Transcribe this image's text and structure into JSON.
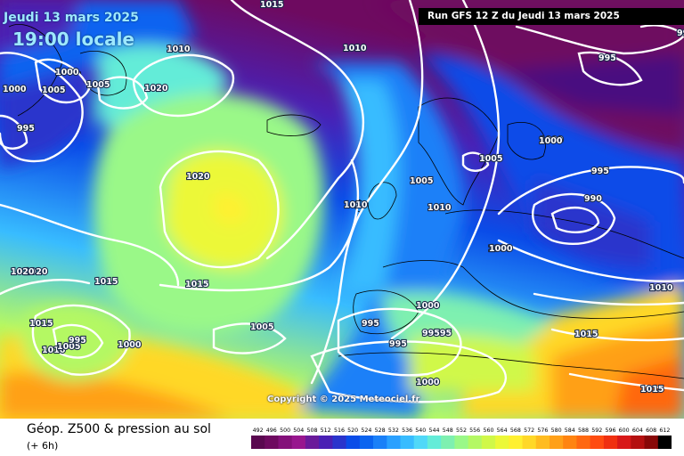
{
  "header": {
    "date": "Jeudi 13 mars 2025",
    "time": "19:00 locale",
    "run": "Run GFS 12 Z du Jeudi 13 mars 2025"
  },
  "copyright": "Copyright © 2025 Meteociel.fr",
  "footer": {
    "title": "Géop. Z500 & pression au sol",
    "subtitle": "(+ 6h)"
  },
  "isobar_labels": [
    "1015",
    "1010",
    "1000",
    "1005",
    "1020",
    "995",
    "1010",
    "1005",
    "1000",
    "1020",
    "1020",
    "1015",
    "1015",
    "1015",
    "1010",
    "1005",
    "995",
    "1000",
    "1005",
    "995",
    "995",
    "99595",
    "1000",
    "1000",
    "1000",
    "995",
    "990",
    "1000",
    "990",
    "995",
    "1010",
    "1005",
    "1010",
    "1015",
    "1005",
    "1000",
    "1010",
    "1020",
    "1000",
    "1015"
  ],
  "legend": {
    "values": [
      "492",
      "496",
      "500",
      "504",
      "508",
      "512",
      "516",
      "520",
      "524",
      "528",
      "532",
      "536",
      "540",
      "544",
      "548",
      "552",
      "556",
      "560",
      "564",
      "568",
      "572",
      "576",
      "580",
      "584",
      "588",
      "592",
      "596",
      "600",
      "604",
      "608",
      "612"
    ],
    "colors": [
      "#5a0850",
      "#6e0a60",
      "#84107a",
      "#98168e",
      "#6a1a9a",
      "#4a20b4",
      "#2a34cc",
      "#0a4ce8",
      "#0a64f0",
      "#1a80f8",
      "#2aa0ff",
      "#38bcff",
      "#50d8f8",
      "#64ecd8",
      "#7ef0b0",
      "#9af888",
      "#b4f864",
      "#d0f848",
      "#ecf838",
      "#fff030",
      "#ffd828",
      "#ffbc20",
      "#ffa018",
      "#ff8410",
      "#ff6810",
      "#ff4c10",
      "#f03010",
      "#d81818",
      "#b41010",
      "#880808",
      "#000000"
    ]
  }
}
